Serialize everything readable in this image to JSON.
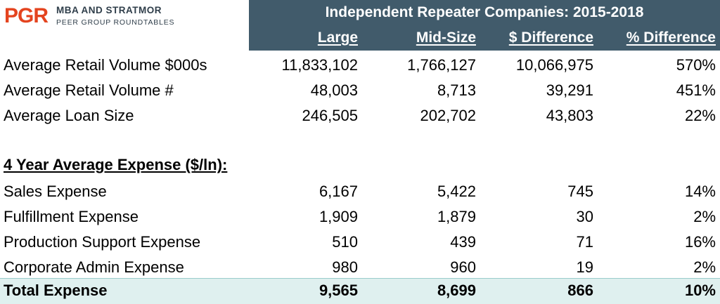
{
  "logo": {
    "brand": "PGR",
    "line1": "MBA AND STRATMOR",
    "line2": "PEER GROUP ROUNDTABLES"
  },
  "header": {
    "title": "Independent Repeater Companies: 2015-2018",
    "columns": [
      "Large",
      "Mid-Size",
      "$ Difference",
      "% Difference"
    ]
  },
  "colors": {
    "header_bg": "#415b6b",
    "total_bg": "#dff0ef",
    "logo_accent": "#e4441f"
  },
  "summary_rows": [
    {
      "label": "Average Retail Volume $000s",
      "large": "11,833,102",
      "mid": "1,766,127",
      "diff": "10,066,975",
      "pct": "570%"
    },
    {
      "label": "Average Retail Volume #",
      "large": "48,003",
      "mid": "8,713",
      "diff": "39,291",
      "pct": "451%"
    },
    {
      "label": "Average Loan Size",
      "large": "246,505",
      "mid": "202,702",
      "diff": "43,803",
      "pct": "22%"
    }
  ],
  "section_title": "4 Year Average Expense ($/ln):",
  "expense_rows": [
    {
      "label": "Sales Expense",
      "large": "6,167",
      "mid": "5,422",
      "diff": "745",
      "pct": "14%"
    },
    {
      "label": "Fulfillment Expense",
      "large": "1,909",
      "mid": "1,879",
      "diff": "30",
      "pct": "2%"
    },
    {
      "label": "Production Support Expense",
      "large": "510",
      "mid": "439",
      "diff": "71",
      "pct": "16%"
    },
    {
      "label": "Corporate Admin Expense",
      "large": "980",
      "mid": "960",
      "diff": "19",
      "pct": "2%"
    }
  ],
  "total": {
    "label": "Total Expense",
    "large": "9,565",
    "mid": "8,699",
    "diff": "866",
    "pct": "10%"
  }
}
